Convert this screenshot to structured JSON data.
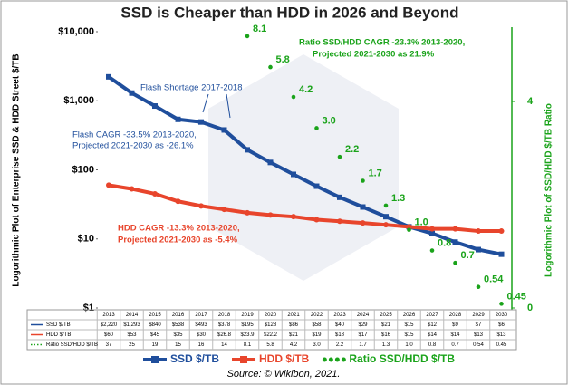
{
  "chart_data": {
    "type": "line",
    "title": "SSD is Cheaper than HDD in 2026 and Beyond",
    "y_label": "Logorithmic Plot of Enterprise SSD & HDD Street $/TB",
    "y2_label": "Logorithmic Plot of SSD/HDD $/TB Ratio",
    "source": "Source: © Wikibon, 2021.",
    "categories": [
      "2013",
      "2014",
      "2015",
      "2016",
      "2017",
      "2018",
      "2019",
      "2020",
      "2021",
      "2022",
      "2023",
      "2024",
      "2025",
      "2026",
      "2027",
      "2028",
      "2029",
      "2030"
    ],
    "log_y": true,
    "log_y2": true,
    "ylim": [
      1,
      10000
    ],
    "yticks": [
      {
        "value": 1,
        "label": "$1"
      },
      {
        "value": 10,
        "label": "$10"
      },
      {
        "value": 100,
        "label": "$100"
      },
      {
        "value": 1000,
        "label": "$1,000"
      },
      {
        "value": 10000,
        "label": "$10,000"
      }
    ],
    "y2lim": [
      0.43,
      8.5
    ],
    "y2ticks": [
      {
        "value": 0.43,
        "label": "0"
      },
      4
    ],
    "series": [
      {
        "name": "SSD $/TB",
        "color": "#1f4e9c",
        "values": [
          2220,
          1293,
          840,
          538,
          493,
          378,
          195,
          128,
          86,
          58,
          40,
          29,
          21,
          15,
          12,
          9,
          7,
          6
        ],
        "value_labels": [
          "$2,220",
          "$1,293",
          "$840",
          "$538",
          "$493",
          "$378",
          "$195",
          "$128",
          "$86",
          "$58",
          "$40",
          "$29",
          "$21",
          "$15",
          "$12",
          "$9",
          "$7",
          "$6"
        ]
      },
      {
        "name": "HDD $/TB",
        "color": "#e8452c",
        "values": [
          60,
          53,
          45,
          35,
          30,
          26.8,
          23.9,
          22.2,
          21,
          19,
          18,
          17,
          16,
          15,
          14,
          14,
          13,
          13
        ],
        "value_labels": [
          "$60",
          "$53",
          "$45",
          "$35",
          "$30",
          "$26.8",
          "$23.9",
          "$22.2",
          "$21",
          "$19",
          "$18",
          "$17",
          "$16",
          "$15",
          "$14",
          "$14",
          "$13",
          "$13"
        ]
      },
      {
        "name": "Ratio SSD/HDD $/TB",
        "color": "#1aa31a",
        "axis": "y2",
        "values": [
          37,
          25,
          19,
          15,
          16,
          14,
          8.1,
          5.8,
          4.2,
          3.0,
          2.2,
          1.7,
          1.3,
          1.0,
          0.8,
          0.7,
          0.54,
          0.45
        ],
        "value_labels": [
          "37",
          "25",
          "19",
          "15",
          "16",
          "14",
          "8.1",
          "5.8",
          "4.2",
          "3.0",
          "2.2",
          "1.7",
          "1.3",
          "1.0",
          "0.8",
          "0.7",
          "0.54",
          "0.45"
        ]
      }
    ],
    "annotations": {
      "flash_shortage": "Flash Shortage 2017-2018",
      "flash_cagr": [
        "Flash CAGR -33.5% 2013-2020,",
        "Projected 2021-2030 as -26.1%"
      ],
      "hdd_cagr": [
        "HDD CAGR -13.3% 2013-2020,",
        "Projected 2021-2030 as -5.4%"
      ],
      "ratio_cagr": [
        "Ratio SSD/HDD CAGR -23.3% 2013-2020,",
        "Projected 2021-2030 as 21.9%"
      ]
    }
  }
}
